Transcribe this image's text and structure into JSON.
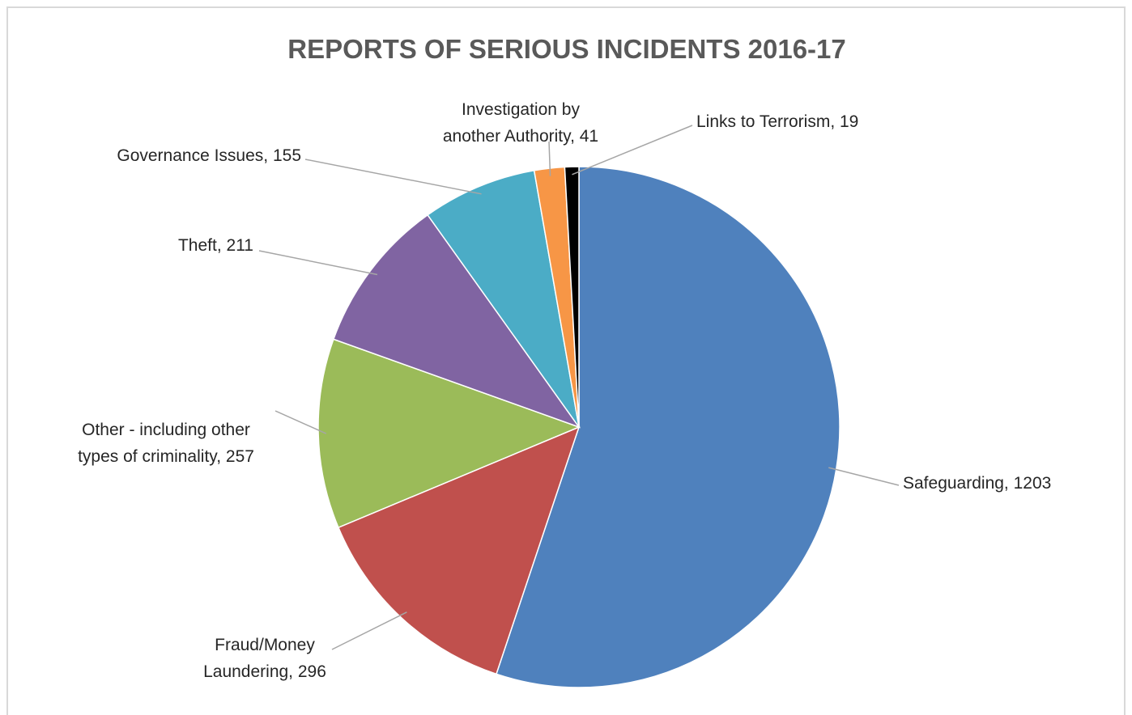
{
  "chart_data": {
    "type": "pie",
    "title": "REPORTS OF SERIOUS INCIDENTS 2016-17",
    "values": [
      1203,
      296,
      257,
      211,
      155,
      41,
      19
    ],
    "value_labels": [
      "Safeguarding, 1203",
      "Fraud/Money\nLaundering, 296",
      "Other - including other\ntypes of criminality, 257",
      "Theft, 211",
      "Governance Issues, 155",
      "Investigation by\nanother Authority, 41",
      "Links to Terrorism, 19"
    ],
    "colors": [
      "#4f81bd",
      "#c0504d",
      "#9bbb59",
      "#8064a2",
      "#4bacc6",
      "#f79646",
      "#000000"
    ]
  }
}
